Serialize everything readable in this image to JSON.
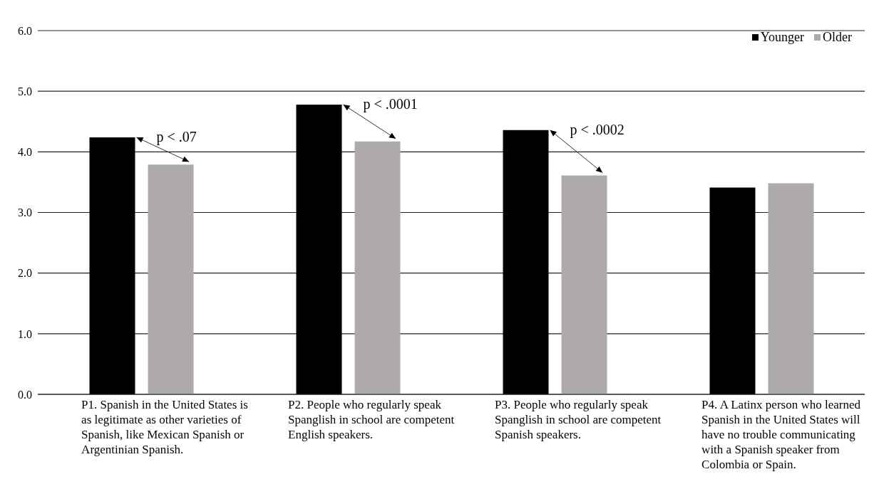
{
  "chart_data": {
    "type": "bar",
    "categories": [
      "P1. Spanish in the United States is as legitimate as other varieties of Spanish, like Mexican Spanish or Argentinian Spanish.",
      "P2. People who regularly speak Spanglish in school are competent English speakers.",
      "P3. People who regularly speak Spanglish in school are competent Spanish speakers.",
      "P4. A Latinx person who learned Spanish in the United States will have no trouble communicating with a Spanish speaker from Colombia or Spain."
    ],
    "series": [
      {
        "name": "Younger",
        "color": "#000000",
        "values": [
          4.24,
          4.78,
          4.36,
          3.41
        ]
      },
      {
        "name": "Older",
        "color": "#aeaaaa",
        "values": [
          3.79,
          4.17,
          3.61,
          3.48
        ]
      }
    ],
    "ylim": [
      0,
      6
    ],
    "yticks": [
      {
        "value": 0,
        "label": "0.0"
      },
      {
        "value": 1,
        "label": "1.0"
      },
      {
        "value": 2,
        "label": "2.0"
      },
      {
        "value": 3,
        "label": "3.0"
      },
      {
        "value": 4,
        "label": "4.0"
      },
      {
        "value": 5,
        "label": "5.0"
      },
      {
        "value": 6,
        "label": "6.0"
      }
    ],
    "grid": "y",
    "legend": "top right",
    "annotations": [
      "p < .07",
      "p < .0001",
      "p < .0002"
    ]
  }
}
